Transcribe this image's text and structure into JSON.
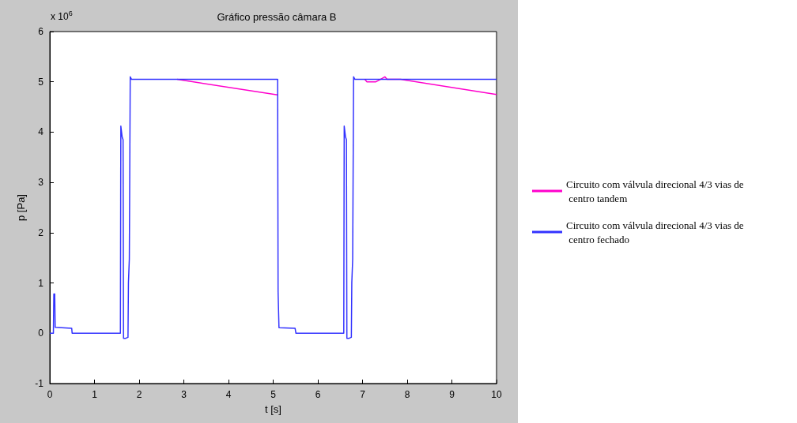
{
  "chart_data": {
    "type": "line",
    "title": "Gráfico pressão câmara B",
    "xlabel": "t [s]",
    "ylabel": "p [Pa]",
    "annotations": [
      "x 10$^{6}$"
    ],
    "xlim": [
      0,
      10
    ],
    "xticks": [
      0,
      1,
      2,
      3,
      4,
      5,
      6,
      7,
      8,
      9,
      10
    ],
    "ylim": [
      -1,
      6
    ],
    "yticks": [
      -1,
      0,
      1,
      2,
      3,
      4,
      5,
      6
    ],
    "grid": false,
    "legend": "right",
    "marker": "none",
    "line_style": "solid",
    "series": [
      {
        "name": "Circuito com válvula direcional 4/3 vias de centro tandem",
        "color": "#ff00cc",
        "x": [
          2.85,
          5.1,
          6,
          7.05,
          7.1,
          7.3,
          7.4,
          7.5,
          7.55,
          7.85,
          10
        ],
        "values": [
          5.05,
          4.74,
          null,
          5.05,
          5.0,
          5.0,
          5.05,
          5.1,
          5.05,
          5.05,
          4.75
        ]
      },
      {
        "name": "Circuito com válvula direcional 4/3 vias de centro fechado",
        "color": "#3333ff",
        "x": [
          0,
          0.08,
          0.09,
          0.11,
          0.12,
          0.49,
          0.5,
          1.58,
          1.59,
          1.62,
          1.64,
          1.65,
          1.7,
          1.75,
          1.76,
          1.78,
          1.8,
          1.83,
          5.1,
          5.11,
          5.13,
          5.49,
          5.51,
          6.58,
          6.59,
          6.62,
          6.64,
          6.65,
          6.7,
          6.75,
          6.76,
          6.78,
          6.8,
          6.83,
          10
        ],
        "values": [
          0,
          0,
          0.78,
          0.78,
          0.12,
          0.1,
          0,
          0,
          4.12,
          3.9,
          3.85,
          -0.1,
          -0.1,
          -0.08,
          1.0,
          1.48,
          5.1,
          5.05,
          5.05,
          0.82,
          0.11,
          0.1,
          0,
          0,
          4.12,
          3.9,
          3.85,
          -0.1,
          -0.1,
          -0.08,
          1.0,
          1.48,
          5.1,
          5.05,
          5.05
        ]
      }
    ]
  }
}
